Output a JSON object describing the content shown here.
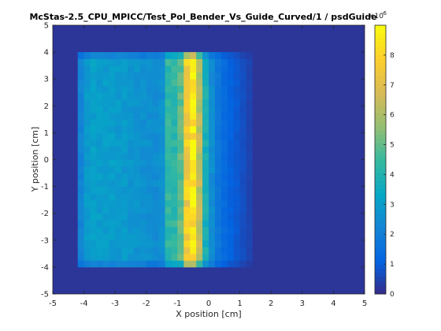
{
  "chart_data": {
    "type": "heatmap",
    "title": "McStas-2.5_CPU_MPICC/Test_Pol_Bender_Vs_Guide_Curved/1 / psdGuide",
    "xlabel": "X position [cm]",
    "ylabel": "Y position [cm]",
    "xlim": [
      -5,
      5
    ],
    "ylim": [
      -5,
      5
    ],
    "x_ticks": [
      "-5",
      "-4",
      "-3",
      "-2",
      "-1",
      "0",
      "1",
      "2",
      "3",
      "4",
      "5"
    ],
    "y_ticks": [
      "-5",
      "-4",
      "-3",
      "-2",
      "-1",
      "0",
      "1",
      "2",
      "3",
      "4",
      "5"
    ],
    "colorbar": {
      "colormap": "parula",
      "range": [
        0,
        9e-06
      ],
      "multiplier": "×10",
      "exponent": "-6",
      "ticks": [
        "0",
        "1",
        "2",
        "3",
        "4",
        "5",
        "6",
        "7",
        "8"
      ]
    },
    "grid": false,
    "x_bin_centers_cm": [
      -4.1,
      -3.9,
      -3.7,
      -3.5,
      -3.3,
      -3.1,
      -2.9,
      -2.7,
      -2.5,
      -2.3,
      -2.1,
      -1.9,
      -1.7,
      -1.5,
      -1.3,
      -1.1,
      -0.9,
      -0.7,
      -0.5,
      -0.3,
      -0.1,
      0.1,
      0.3,
      0.5,
      0.7,
      0.9,
      1.1,
      1.3
    ],
    "column_intensity_e-6": [
      2.2,
      2.9,
      3.1,
      3.0,
      3.0,
      3.0,
      2.9,
      2.9,
      2.8,
      2.7,
      2.6,
      2.6,
      2.5,
      2.6,
      4.3,
      4.3,
      5.0,
      7.6,
      8.4,
      6.2,
      3.8,
      2.5,
      1.8,
      1.4,
      1.1,
      0.9,
      0.7,
      0.5
    ],
    "signal_y_range_cm": [
      -4.0,
      4.0
    ],
    "background_level_e-6": 0.2
  }
}
